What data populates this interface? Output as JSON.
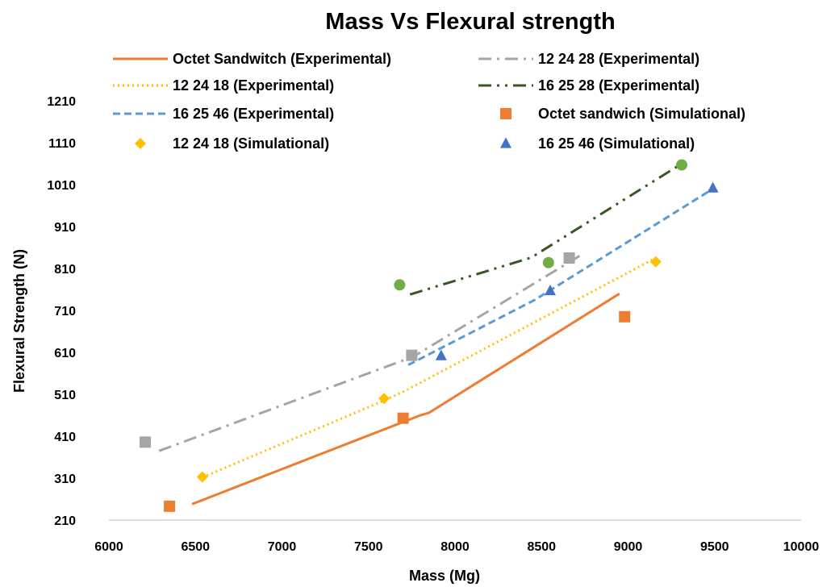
{
  "chart_data": {
    "type": "scatter",
    "title": "Mass Vs Flexural strength",
    "xlabel": "Mass (Mg)",
    "ylabel": "Flexural Strength (N)",
    "xlim": [
      6000,
      10000
    ],
    "ylim": [
      210,
      1210
    ],
    "xticks": [
      6000,
      6500,
      7000,
      7500,
      8000,
      8500,
      9000,
      9500,
      10000
    ],
    "yticks": [
      210,
      310,
      410,
      510,
      610,
      710,
      810,
      910,
      1010,
      1110,
      1210
    ],
    "grid": false,
    "legend_position": "top",
    "series": [
      {
        "name": "Octet Sandwitch (Experimental)",
        "kind": "line",
        "color": "#ED7D31",
        "dash": "solid",
        "points": [
          [
            6480,
            248
          ],
          [
            7800,
            460
          ],
          [
            7850,
            466
          ],
          [
            8950,
            750
          ]
        ]
      },
      {
        "name": "12 24 28 (Experimental)",
        "kind": "line",
        "color": "#A5A5A5",
        "dash": "dashdot",
        "points": [
          [
            6290,
            375
          ],
          [
            7760,
            600
          ],
          [
            8720,
            840
          ]
        ]
      },
      {
        "name": "12 24 18 (Experimental)",
        "kind": "line",
        "color": "#FFC000",
        "dash": "dot",
        "points": [
          [
            6540,
            312
          ],
          [
            7590,
            495
          ],
          [
            7720,
            520
          ],
          [
            9150,
            833
          ]
        ]
      },
      {
        "name": "16 25 28 (Experimental)",
        "kind": "line",
        "color": "#375623",
        "dash": "dashdotdot",
        "points": [
          [
            7740,
            748
          ],
          [
            8440,
            836
          ],
          [
            9310,
            1060
          ]
        ]
      },
      {
        "name": "16 25 46 (Experimental)",
        "kind": "line",
        "color": "#5B9BD5",
        "dash": "dash",
        "points": [
          [
            7730,
            580
          ],
          [
            8460,
            735
          ],
          [
            9490,
            1000
          ]
        ]
      },
      {
        "name": "Octet sandwich (Simulational)",
        "kind": "marker",
        "marker": "square",
        "color": "#ED7D31",
        "points": [
          [
            6350,
            243
          ],
          [
            7700,
            453
          ],
          [
            8980,
            695
          ]
        ]
      },
      {
        "name": "12 24 18 (Simulational)",
        "kind": "marker",
        "marker": "diamond",
        "color": "#FFC000",
        "points": [
          [
            6540,
            313
          ],
          [
            7590,
            500
          ],
          [
            9160,
            826
          ]
        ]
      },
      {
        "name": "16 25 46 (Simulational)",
        "kind": "marker",
        "marker": "triangle",
        "color": "#4472C4",
        "points": [
          [
            7920,
            602
          ],
          [
            8550,
            757
          ],
          [
            9490,
            1002
          ]
        ]
      },
      {
        "name": "",
        "kind": "marker",
        "marker": "square",
        "color": "#A5A5A5",
        "points": [
          [
            6210,
            396
          ],
          [
            7750,
            603
          ],
          [
            8660,
            835
          ]
        ]
      },
      {
        "name": "",
        "kind": "marker",
        "marker": "circle",
        "color": "#70AD47",
        "points": [
          [
            7680,
            771
          ],
          [
            8540,
            824
          ],
          [
            9310,
            1057
          ]
        ]
      }
    ],
    "legend_order": [
      0,
      1,
      2,
      3,
      4,
      5,
      6,
      7
    ]
  }
}
